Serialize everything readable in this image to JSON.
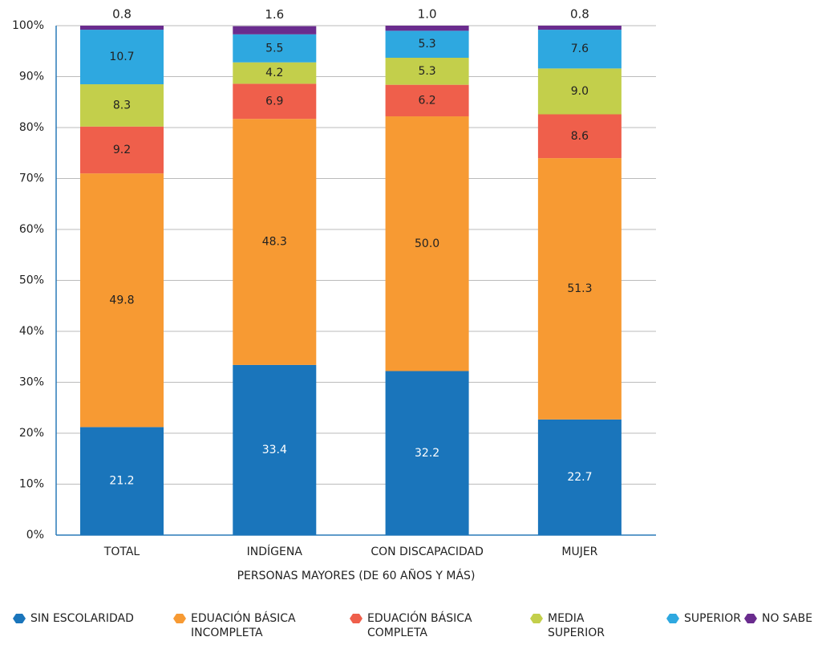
{
  "chart_data": {
    "type": "stacked_bar",
    "categories": [
      "TOTAL",
      "INDÍGENA",
      "CON DISCAPACIDAD",
      "MUJER"
    ],
    "xlabel": "PERSONAS MAYORES (DE 60 AÑOS Y MÁS)",
    "series": [
      {
        "name": "SIN ESCOLARIDAD",
        "color": "#1a75bb",
        "values": [
          21.2,
          33.4,
          32.2,
          22.7
        ],
        "value_labels": [
          "21.2",
          "33.4",
          "32.2",
          "22.7"
        ]
      },
      {
        "name": "EDUACIÓN BÁSICA INCOMPLETA",
        "color": "#f79a33",
        "values": [
          49.8,
          48.3,
          50.0,
          51.3
        ],
        "value_labels": [
          "49.8",
          "48.3",
          "50.0",
          "51.3"
        ]
      },
      {
        "name": "EDUACIÓN BÁSICA COMPLETA",
        "color": "#ef5f4b",
        "values": [
          9.2,
          6.9,
          6.2,
          8.6
        ],
        "value_labels": [
          "9.2",
          "6.9",
          "6.2",
          "8.6"
        ]
      },
      {
        "name": "MEDIA SUPERIOR",
        "color": "#c3cf4b",
        "values": [
          8.3,
          4.2,
          5.3,
          9.0
        ],
        "value_labels": [
          "8.3",
          "4.2",
          "5.3",
          "9.0"
        ]
      },
      {
        "name": "SUPERIOR",
        "color": "#2ea8e0",
        "values": [
          10.7,
          5.5,
          5.3,
          7.6
        ],
        "value_labels": [
          "10.7",
          "5.5",
          "5.3",
          "7.6"
        ]
      },
      {
        "name": "NO SABE",
        "color": "#6a2c8e",
        "values": [
          0.8,
          1.6,
          1.0,
          0.8
        ],
        "value_labels": [
          "0.8",
          "1.6",
          "1.0",
          "0.8"
        ]
      }
    ],
    "ylim": [
      0,
      100
    ],
    "yticks": [
      {
        "value": 0,
        "label": "0%"
      },
      {
        "value": 10,
        "label": "10%"
      },
      {
        "value": 20,
        "label": "20%"
      },
      {
        "value": 30,
        "label": "30%"
      },
      {
        "value": 40,
        "label": "40%"
      },
      {
        "value": 50,
        "label": "50%"
      },
      {
        "value": 60,
        "label": "60%"
      },
      {
        "value": 70,
        "label": "70%"
      },
      {
        "value": 80,
        "label": "80%"
      },
      {
        "value": 90,
        "label": "90%"
      },
      {
        "value": 100,
        "label": "100%"
      }
    ],
    "grid": true
  }
}
